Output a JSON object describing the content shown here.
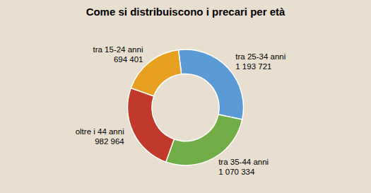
{
  "chart_data": {
    "type": "donut",
    "title": "Come si distribuiscono i precari per età",
    "categories": [
      "tra 25-34 anni",
      "tra 35-44 anni",
      "oltre i 44 anni",
      "tra 15-24 anni"
    ],
    "values": [
      1193721,
      1070334,
      982964,
      694401
    ],
    "value_labels": [
      "1 193 721",
      "1 070 334",
      "982 964",
      "694 401"
    ],
    "colors": [
      "#5b9bd5",
      "#70ad47",
      "#c0392b",
      "#e8a020"
    ],
    "data_labels": true
  }
}
